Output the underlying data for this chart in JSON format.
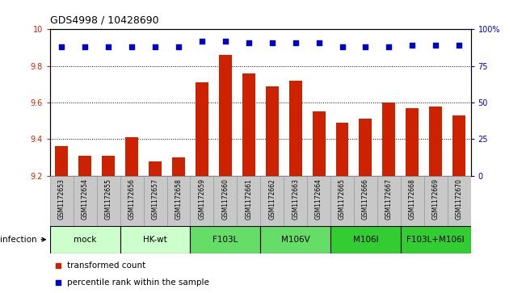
{
  "title": "GDS4998 / 10428690",
  "samples": [
    "GSM1172653",
    "GSM1172654",
    "GSM1172655",
    "GSM1172656",
    "GSM1172657",
    "GSM1172658",
    "GSM1172659",
    "GSM1172660",
    "GSM1172661",
    "GSM1172662",
    "GSM1172663",
    "GSM1172664",
    "GSM1172665",
    "GSM1172666",
    "GSM1172667",
    "GSM1172668",
    "GSM1172669",
    "GSM1172670"
  ],
  "bar_values": [
    9.36,
    9.31,
    9.31,
    9.41,
    9.28,
    9.3,
    9.71,
    9.86,
    9.76,
    9.69,
    9.72,
    9.55,
    9.49,
    9.51,
    9.6,
    9.57,
    9.58,
    9.53
  ],
  "percentile_values": [
    88,
    88,
    88,
    88,
    88,
    88,
    92,
    92,
    91,
    91,
    91,
    91,
    88,
    88,
    88,
    89,
    89,
    89
  ],
  "bar_color": "#cc2200",
  "dot_color": "#0000cc",
  "ylim_left": [
    9.2,
    10.0
  ],
  "ylim_right": [
    0,
    100
  ],
  "yticks_left": [
    9.2,
    9.4,
    9.6,
    9.8,
    10.0
  ],
  "yticks_right": [
    0,
    25,
    50,
    75,
    100
  ],
  "ytick_labels_right": [
    "0",
    "25",
    "50",
    "75",
    "100%"
  ],
  "groups": [
    {
      "label": "mock",
      "start": 0,
      "end": 2,
      "color": "#ccffcc"
    },
    {
      "label": "HK-wt",
      "start": 3,
      "end": 5,
      "color": "#ccffcc"
    },
    {
      "label": "F103L",
      "start": 6,
      "end": 8,
      "color": "#66dd66"
    },
    {
      "label": "M106V",
      "start": 9,
      "end": 11,
      "color": "#66dd66"
    },
    {
      "label": "M106I",
      "start": 12,
      "end": 14,
      "color": "#33cc33"
    },
    {
      "label": "F103L+M106I",
      "start": 15,
      "end": 17,
      "color": "#33cc33"
    }
  ],
  "infection_label": "infection",
  "legend_items": [
    {
      "label": "transformed count",
      "color": "#cc2200"
    },
    {
      "label": "percentile rank within the sample",
      "color": "#0000cc"
    }
  ],
  "bar_bottom": 9.2,
  "background_color": "#ffffff",
  "title_fontsize": 9,
  "tick_fontsize": 7,
  "sample_fontsize": 5.5,
  "group_label_fontsize": 7.5,
  "legend_fontsize": 7.5
}
